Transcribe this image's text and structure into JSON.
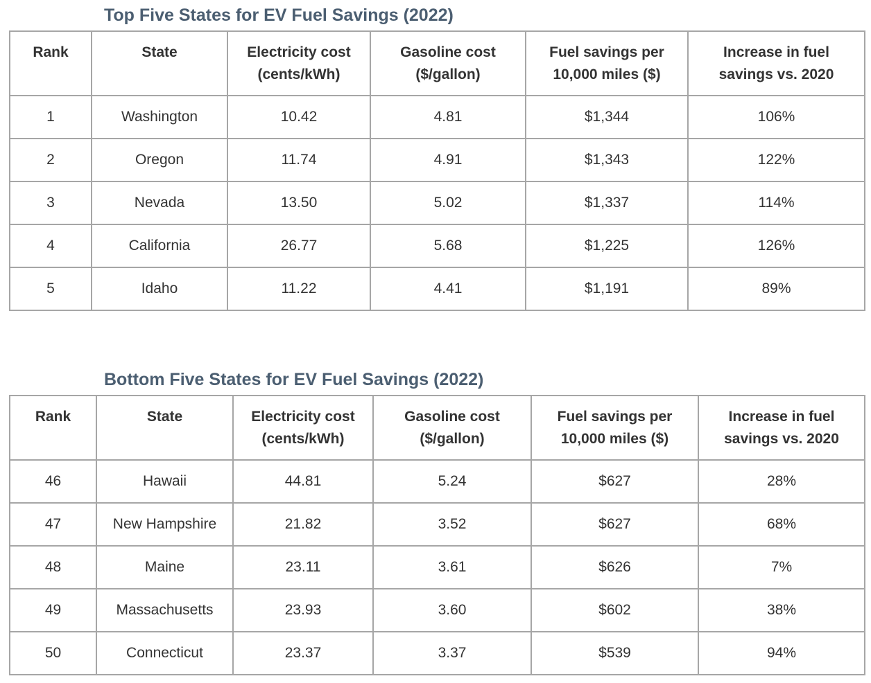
{
  "top_table": {
    "title": "Top Five States for EV Fuel Savings (2022)",
    "headers": [
      [
        "Rank"
      ],
      [
        "State"
      ],
      [
        "Electricity cost",
        "(cents/kWh)"
      ],
      [
        "Gasoline cost",
        "($/gallon)"
      ],
      [
        "Fuel savings per",
        "10,000 miles ($)"
      ],
      [
        "Increase in fuel",
        "savings vs. 2020"
      ]
    ],
    "rows": [
      [
        "1",
        "Washington",
        "10.42",
        "4.81",
        "$1,344",
        "106%"
      ],
      [
        "2",
        "Oregon",
        "11.74",
        "4.91",
        "$1,343",
        "122%"
      ],
      [
        "3",
        "Nevada",
        "13.50",
        "5.02",
        "$1,337",
        "114%"
      ],
      [
        "4",
        "California",
        "26.77",
        "5.68",
        "$1,225",
        "126%"
      ],
      [
        "5",
        "Idaho",
        "11.22",
        "4.41",
        "$1,191",
        "89%"
      ]
    ]
  },
  "bottom_table": {
    "title": "Bottom Five States for EV Fuel Savings (2022)",
    "headers": [
      [
        "Rank"
      ],
      [
        "State"
      ],
      [
        "Electricity cost",
        "(cents/kWh)"
      ],
      [
        "Gasoline cost",
        "($/gallon)"
      ],
      [
        "Fuel savings per",
        "10,000 miles ($)"
      ],
      [
        "Increase in fuel",
        "savings vs. 2020"
      ]
    ],
    "rows": [
      [
        "46",
        "Hawaii",
        "44.81",
        "5.24",
        "$627",
        "28%"
      ],
      [
        "47",
        "New Hampshire",
        "21.82",
        "3.52",
        "$627",
        "68%"
      ],
      [
        "48",
        "Maine",
        "23.11",
        "3.61",
        "$626",
        "7%"
      ],
      [
        "49",
        "Massachusetts",
        "23.93",
        "3.60",
        "$602",
        "38%"
      ],
      [
        "50",
        "Connecticut",
        "23.37",
        "3.37",
        "$539",
        "94%"
      ]
    ]
  },
  "colors": {
    "title": "#4b5e71",
    "border": "#a6a6a6",
    "text": "#333333"
  }
}
